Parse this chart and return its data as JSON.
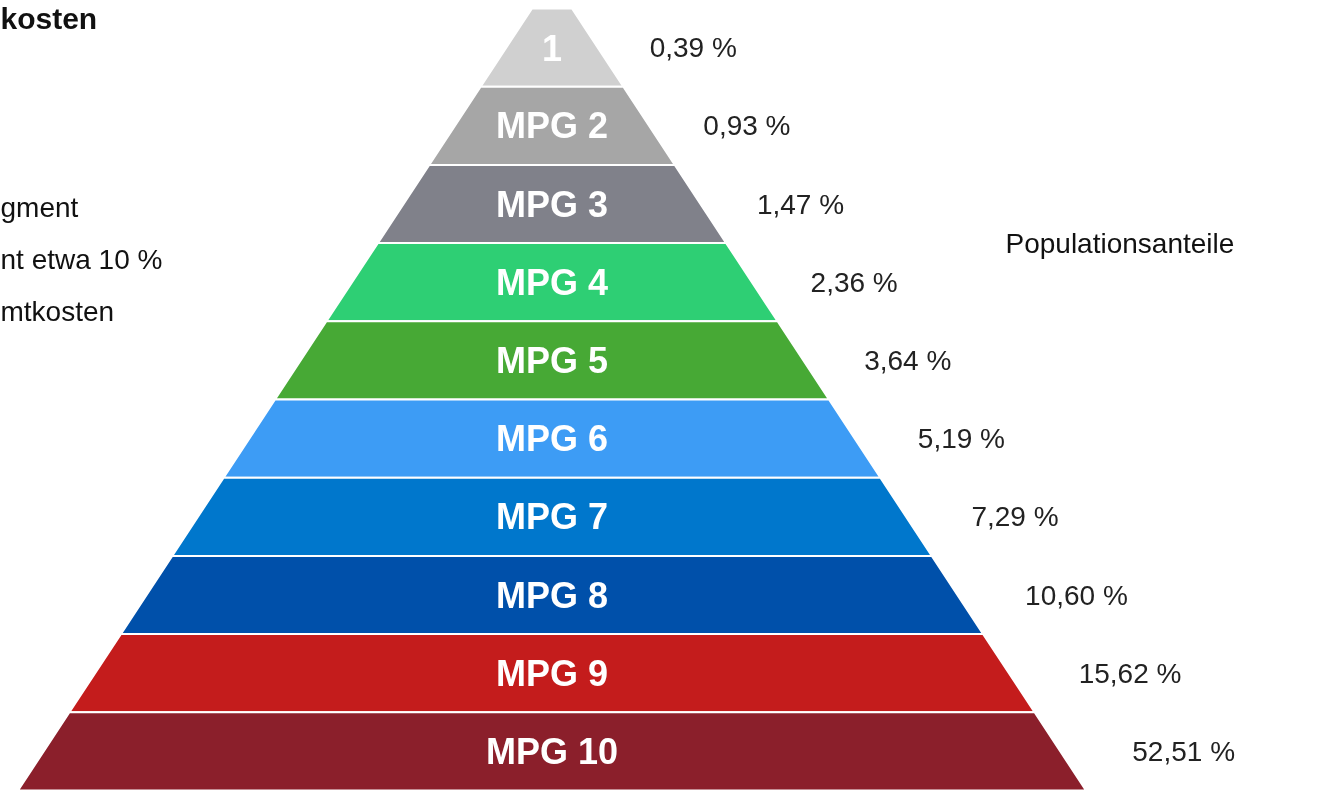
{
  "chart_data": {
    "type": "other",
    "title": "kosten",
    "categories": [
      "1",
      "MPG 2",
      "MPG 3",
      "MPG 4",
      "MPG 5",
      "MPG 6",
      "MPG 7",
      "MPG 8",
      "MPG 9",
      "MPG 10"
    ],
    "values": [
      0.39,
      0.93,
      1.47,
      2.36,
      3.64,
      5.19,
      7.29,
      10.6,
      15.62,
      52.51
    ],
    "value_labels": [
      "0,39 %",
      "0,93 %",
      "1,47 %",
      "2,36 %",
      "3,64 %",
      "5,19 %",
      "7,29 %",
      "10,60 %",
      "15,62 %",
      "52,51 %"
    ],
    "colors": [
      "#d0d0d0",
      "#a6a6a6",
      "#80818a",
      "#2ecf74",
      "#47a935",
      "#3d9cf5",
      "#0077cc",
      "#0050aa",
      "#c41c1c",
      "#8b1f2b"
    ],
    "annotations": [
      "gment",
      "nt etwa 10 %",
      "mtkosten",
      "Populationsanteile"
    ]
  }
}
